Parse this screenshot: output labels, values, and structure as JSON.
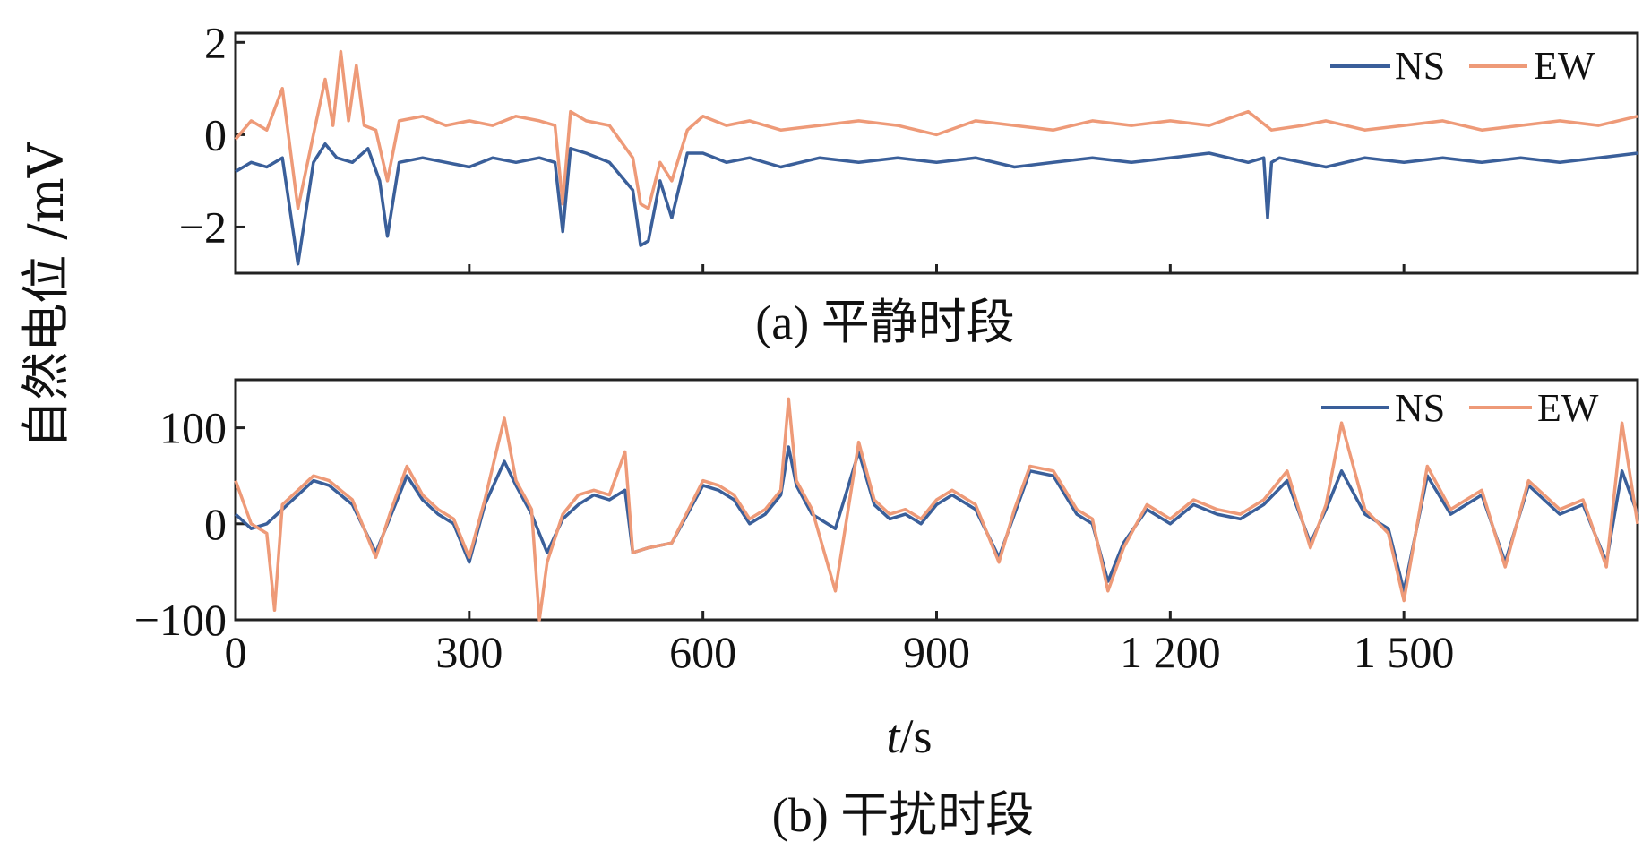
{
  "y_axis_label": "自然电位 /mV",
  "x_axis_label_var": "t",
  "x_axis_label_unit": "/s",
  "colors": {
    "NS": "#3a5f9a",
    "EW": "#ee9a78"
  },
  "x_ticks": [
    "0",
    "300",
    "600",
    "900",
    "1 200",
    "1 500"
  ],
  "chart_data": [
    {
      "type": "line",
      "caption": "(a) 平静时段",
      "xlim": [
        0,
        1800
      ],
      "ylim": [
        -3,
        2.2
      ],
      "y_ticks": [
        "2",
        "0",
        "−2"
      ],
      "legend": {
        "position": "top-right",
        "entries": [
          "NS",
          "EW"
        ]
      },
      "series": [
        {
          "name": "NS",
          "x": [
            0,
            20,
            40,
            60,
            80,
            100,
            115,
            130,
            150,
            170,
            185,
            195,
            210,
            240,
            270,
            300,
            330,
            360,
            390,
            410,
            420,
            430,
            450,
            480,
            510,
            520,
            530,
            545,
            560,
            580,
            600,
            630,
            660,
            700,
            750,
            800,
            850,
            900,
            950,
            1000,
            1050,
            1100,
            1150,
            1200,
            1250,
            1300,
            1320,
            1325,
            1330,
            1340,
            1370,
            1400,
            1450,
            1500,
            1550,
            1600,
            1650,
            1700,
            1750,
            1800
          ],
          "y": [
            -0.8,
            -0.6,
            -0.7,
            -0.5,
            -2.8,
            -0.6,
            -0.2,
            -0.5,
            -0.6,
            -0.3,
            -1.0,
            -2.2,
            -0.6,
            -0.5,
            -0.6,
            -0.7,
            -0.5,
            -0.6,
            -0.5,
            -0.6,
            -2.1,
            -0.3,
            -0.4,
            -0.6,
            -1.2,
            -2.4,
            -2.3,
            -1.0,
            -1.8,
            -0.4,
            -0.4,
            -0.6,
            -0.5,
            -0.7,
            -0.5,
            -0.6,
            -0.5,
            -0.6,
            -0.5,
            -0.7,
            -0.6,
            -0.5,
            -0.6,
            -0.5,
            -0.4,
            -0.6,
            -0.5,
            -1.8,
            -0.6,
            -0.5,
            -0.6,
            -0.7,
            -0.5,
            -0.6,
            -0.5,
            -0.6,
            -0.5,
            -0.6,
            -0.5,
            -0.4
          ]
        },
        {
          "name": "EW",
          "x": [
            0,
            20,
            40,
            60,
            80,
            100,
            115,
            125,
            135,
            145,
            155,
            165,
            180,
            195,
            210,
            240,
            270,
            300,
            330,
            360,
            390,
            410,
            420,
            430,
            450,
            480,
            510,
            520,
            530,
            545,
            560,
            580,
            600,
            630,
            660,
            700,
            750,
            800,
            850,
            900,
            950,
            1000,
            1050,
            1100,
            1150,
            1200,
            1250,
            1300,
            1330,
            1370,
            1400,
            1450,
            1500,
            1550,
            1600,
            1650,
            1700,
            1750,
            1800
          ],
          "y": [
            -0.1,
            0.3,
            0.1,
            1.0,
            -1.6,
            0.0,
            1.2,
            0.2,
            1.8,
            0.3,
            1.5,
            0.2,
            0.1,
            -1.0,
            0.3,
            0.4,
            0.2,
            0.3,
            0.2,
            0.4,
            0.3,
            0.2,
            -1.5,
            0.5,
            0.3,
            0.2,
            -0.5,
            -1.5,
            -1.6,
            -0.6,
            -1.0,
            0.1,
            0.4,
            0.2,
            0.3,
            0.1,
            0.2,
            0.3,
            0.2,
            0.0,
            0.3,
            0.2,
            0.1,
            0.3,
            0.2,
            0.3,
            0.2,
            0.5,
            0.1,
            0.2,
            0.3,
            0.1,
            0.2,
            0.3,
            0.1,
            0.2,
            0.3,
            0.2,
            0.4
          ]
        }
      ]
    },
    {
      "type": "line",
      "caption": "(b) 干扰时段",
      "xlim": [
        0,
        1800
      ],
      "ylim": [
        -100,
        150
      ],
      "y_ticks": [
        "100",
        "0",
        "−100"
      ],
      "legend": {
        "position": "top-right",
        "entries": [
          "NS",
          "EW"
        ]
      },
      "series": [
        {
          "name": "NS",
          "x": [
            0,
            20,
            40,
            60,
            80,
            100,
            120,
            150,
            180,
            200,
            220,
            240,
            260,
            280,
            300,
            320,
            345,
            360,
            380,
            400,
            420,
            440,
            460,
            480,
            500,
            510,
            530,
            560,
            600,
            620,
            640,
            660,
            680,
            700,
            710,
            720,
            740,
            770,
            800,
            820,
            840,
            860,
            880,
            900,
            920,
            950,
            980,
            1000,
            1020,
            1050,
            1080,
            1100,
            1120,
            1140,
            1170,
            1200,
            1230,
            1260,
            1290,
            1320,
            1350,
            1380,
            1400,
            1420,
            1450,
            1480,
            1500,
            1530,
            1560,
            1600,
            1630,
            1660,
            1700,
            1730,
            1760,
            1780,
            1800
          ],
          "y": [
            10,
            -5,
            0,
            15,
            30,
            45,
            40,
            20,
            -30,
            10,
            50,
            25,
            10,
            0,
            -40,
            20,
            65,
            40,
            10,
            -30,
            5,
            20,
            30,
            25,
            35,
            -30,
            -25,
            -20,
            40,
            35,
            25,
            0,
            10,
            30,
            80,
            40,
            10,
            -5,
            75,
            20,
            5,
            10,
            0,
            20,
            30,
            15,
            -35,
            10,
            55,
            50,
            10,
            0,
            -60,
            -20,
            15,
            0,
            20,
            10,
            5,
            20,
            45,
            -20,
            15,
            55,
            10,
            -5,
            -70,
            50,
            10,
            30,
            -40,
            40,
            10,
            20,
            -40,
            55,
            10
          ]
        },
        {
          "name": "EW",
          "x": [
            0,
            20,
            40,
            50,
            60,
            80,
            100,
            120,
            150,
            180,
            200,
            220,
            240,
            260,
            280,
            300,
            320,
            345,
            360,
            380,
            390,
            400,
            420,
            440,
            460,
            480,
            500,
            510,
            530,
            560,
            600,
            620,
            640,
            660,
            680,
            700,
            710,
            720,
            740,
            770,
            800,
            820,
            840,
            860,
            880,
            900,
            920,
            950,
            980,
            1000,
            1020,
            1050,
            1080,
            1100,
            1120,
            1140,
            1170,
            1200,
            1230,
            1260,
            1290,
            1320,
            1350,
            1380,
            1400,
            1420,
            1450,
            1480,
            1500,
            1530,
            1560,
            1600,
            1630,
            1660,
            1700,
            1730,
            1760,
            1780,
            1800
          ],
          "y": [
            45,
            0,
            -10,
            -90,
            20,
            35,
            50,
            45,
            25,
            -35,
            15,
            60,
            30,
            15,
            5,
            -35,
            25,
            110,
            45,
            15,
            -100,
            -40,
            10,
            30,
            35,
            30,
            75,
            -30,
            -25,
            -20,
            45,
            40,
            30,
            5,
            15,
            35,
            130,
            45,
            15,
            -70,
            85,
            25,
            10,
            15,
            5,
            25,
            35,
            20,
            -40,
            15,
            60,
            55,
            15,
            5,
            -70,
            -25,
            20,
            5,
            25,
            15,
            10,
            25,
            55,
            -25,
            20,
            105,
            15,
            -10,
            -80,
            60,
            15,
            35,
            -45,
            45,
            15,
            25,
            -45,
            105,
            0
          ]
        }
      ]
    }
  ]
}
